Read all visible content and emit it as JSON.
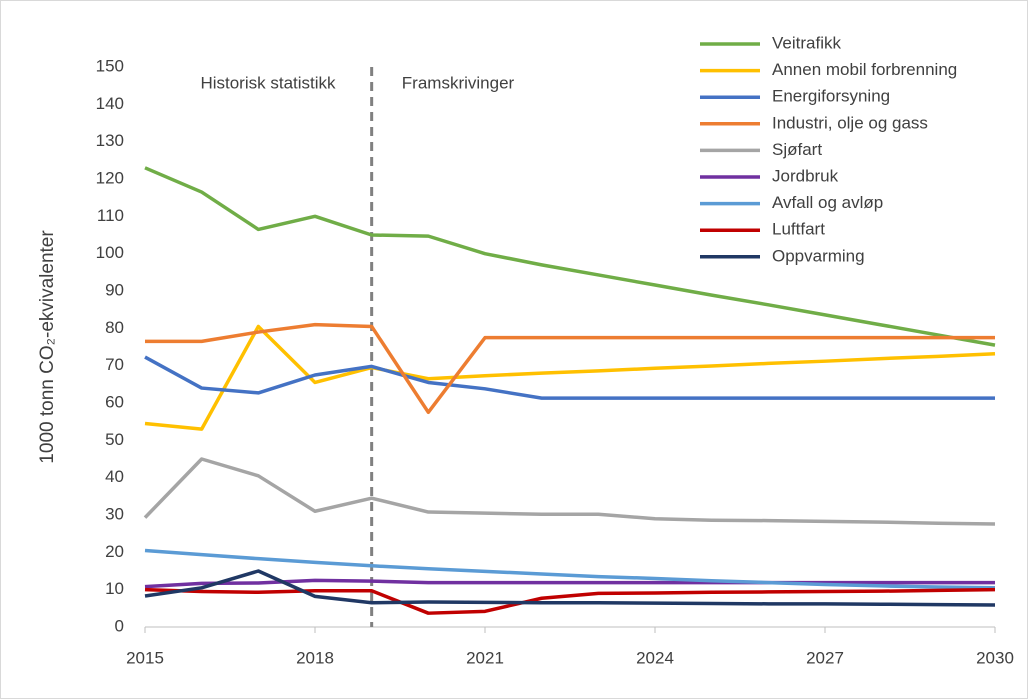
{
  "chart_data": {
    "type": "line",
    "y_label": "1000 tonn CO₂-ekvivalenter",
    "annotations": [
      "Historisk statistikk",
      "Framskrivinger"
    ],
    "divider_x": 2019,
    "x": [
      2015,
      2016,
      2017,
      2018,
      2019,
      2020,
      2021,
      2022,
      2023,
      2024,
      2025,
      2026,
      2027,
      2028,
      2029,
      2030
    ],
    "xlim": [
      2015,
      2030
    ],
    "xticks": [
      2015,
      2018,
      2021,
      2024,
      2027,
      2030
    ],
    "ylim": [
      0,
      150
    ],
    "yticks": [
      0,
      10,
      20,
      30,
      40,
      50,
      60,
      70,
      80,
      90,
      100,
      110,
      120,
      130,
      140,
      150
    ],
    "grid": false,
    "legend": "top-right",
    "series": [
      {
        "name": "Veitrafikk",
        "color": "#70ad47",
        "values": [
          123,
          116.5,
          106.5,
          110,
          105,
          104.7,
          100,
          97,
          94.3,
          91.6,
          88.9,
          86.3,
          83.6,
          80.9,
          78.2,
          75.5
        ]
      },
      {
        "name": "Annen mobil forbrenning",
        "color": "#ffc000",
        "values": [
          54.5,
          53,
          80.5,
          65.5,
          69.5,
          66.5,
          67.3,
          68,
          68.6,
          69.3,
          69.9,
          70.6,
          71.2,
          71.9,
          72.5,
          73.2
        ]
      },
      {
        "name": "Energiforsyning",
        "color": "#4472c4",
        "values": [
          72.3,
          64,
          62.7,
          67.5,
          69.8,
          65.5,
          63.8,
          61.3,
          61.3,
          61.3,
          61.3,
          61.3,
          61.3,
          61.3,
          61.3,
          61.3
        ]
      },
      {
        "name": "Industri, olje og gass",
        "color": "#ed7d31",
        "values": [
          76.5,
          76.5,
          79,
          81,
          80.5,
          57.5,
          77.5,
          77.5,
          77.5,
          77.5,
          77.5,
          77.5,
          77.5,
          77.5,
          77.5,
          77.5
        ]
      },
      {
        "name": "Sjøfart",
        "color": "#a5a5a5",
        "values": [
          29.3,
          45,
          40.5,
          31,
          34.5,
          30.8,
          30.5,
          30.2,
          30.2,
          29,
          28.6,
          28.5,
          28.3,
          28.1,
          27.8,
          27.6
        ]
      },
      {
        "name": "Jordbruk",
        "color": "#7030a0",
        "values": [
          10.8,
          11.7,
          11.8,
          12.5,
          12.3,
          11.9,
          11.9,
          11.9,
          11.9,
          11.9,
          11.9,
          11.9,
          11.9,
          11.9,
          11.9,
          11.9
        ]
      },
      {
        "name": "Avfall og avløp",
        "color": "#5b9bd5",
        "values": [
          20.5,
          19.4,
          18.3,
          17.3,
          16.4,
          15.6,
          14.9,
          14.2,
          13.5,
          13,
          12.4,
          11.9,
          11.4,
          11,
          10.7,
          10.5
        ]
      },
      {
        "name": "Luftfart",
        "color": "#c00000",
        "values": [
          10,
          9.5,
          9.3,
          9.7,
          9.7,
          3.7,
          4.2,
          7.7,
          9,
          9.1,
          9.3,
          9.4,
          9.5,
          9.6,
          9.8,
          10
        ]
      },
      {
        "name": "Oppvarming",
        "color": "#203864",
        "values": [
          8.3,
          10.5,
          15,
          8.2,
          6.5,
          6.7,
          6.6,
          6.5,
          6.5,
          6.4,
          6.3,
          6.2,
          6.2,
          6.1,
          6,
          5.9
        ]
      }
    ]
  }
}
